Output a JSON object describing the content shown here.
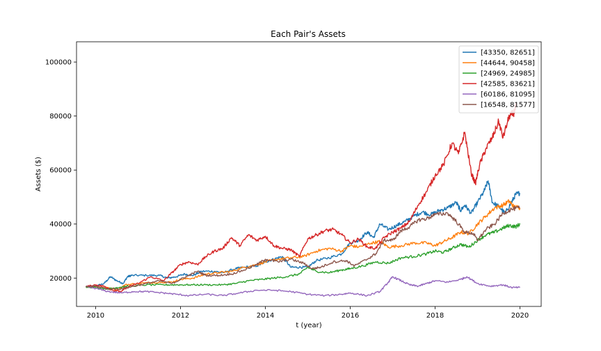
{
  "chart_data": {
    "type": "line",
    "title": "Each Pair's Assets",
    "xlabel": "t (year)",
    "ylabel": "Assets ($)",
    "xlim": [
      2009.55,
      2020.5
    ],
    "ylim": [
      9500,
      107500
    ],
    "x_ticks": [
      2010,
      2012,
      2014,
      2016,
      2018,
      2020
    ],
    "x_tick_labels": [
      "2010",
      "2012",
      "2014",
      "2016",
      "2018",
      "2020"
    ],
    "y_ticks": [
      20000,
      40000,
      60000,
      80000,
      100000
    ],
    "y_tick_labels": [
      "20000",
      "40000",
      "60000",
      "80000",
      "100000"
    ],
    "grid": false,
    "legend_position": "top-right",
    "series": [
      {
        "name": "[43350, 82651]",
        "color": "#1f77b4",
        "points": [
          [
            2009.77,
            16800
          ],
          [
            2010.0,
            17000
          ],
          [
            2010.2,
            18000
          ],
          [
            2010.35,
            20500
          ],
          [
            2010.5,
            19000
          ],
          [
            2010.65,
            18000
          ],
          [
            2010.75,
            20500
          ],
          [
            2010.85,
            21000
          ],
          [
            2011.2,
            21000
          ],
          [
            2011.5,
            21000
          ],
          [
            2011.7,
            20000
          ],
          [
            2011.9,
            20500
          ],
          [
            2012.1,
            21500
          ],
          [
            2012.3,
            21000
          ],
          [
            2012.5,
            22500
          ],
          [
            2012.8,
            22500
          ],
          [
            2013.0,
            22000
          ],
          [
            2013.3,
            23500
          ],
          [
            2013.5,
            24000
          ],
          [
            2013.8,
            24500
          ],
          [
            2014.0,
            26000
          ],
          [
            2014.2,
            27000
          ],
          [
            2014.4,
            28000
          ],
          [
            2014.6,
            24000
          ],
          [
            2014.8,
            24000
          ],
          [
            2015.0,
            24000
          ],
          [
            2015.2,
            26500
          ],
          [
            2015.5,
            27500
          ],
          [
            2015.8,
            29000
          ],
          [
            2016.0,
            33000
          ],
          [
            2016.2,
            34000
          ],
          [
            2016.4,
            37000
          ],
          [
            2016.55,
            35000
          ],
          [
            2016.7,
            40000
          ],
          [
            2016.9,
            38000
          ],
          [
            2017.1,
            39500
          ],
          [
            2017.3,
            41000
          ],
          [
            2017.5,
            43000
          ],
          [
            2017.7,
            44500
          ],
          [
            2017.9,
            43500
          ],
          [
            2018.1,
            45000
          ],
          [
            2018.3,
            46000
          ],
          [
            2018.5,
            48000
          ],
          [
            2018.6,
            45000
          ],
          [
            2018.7,
            47000
          ],
          [
            2018.85,
            44000
          ],
          [
            2019.0,
            48000
          ],
          [
            2019.15,
            52000
          ],
          [
            2019.25,
            56000
          ],
          [
            2019.35,
            48000
          ],
          [
            2019.5,
            46500
          ],
          [
            2019.65,
            44000
          ],
          [
            2019.8,
            48000
          ],
          [
            2019.9,
            51000
          ],
          [
            2020.0,
            51500
          ]
        ]
      },
      {
        "name": "[44644, 90458]",
        "color": "#ff7f0e",
        "points": [
          [
            2009.77,
            16800
          ],
          [
            2010.0,
            16800
          ],
          [
            2010.3,
            16500
          ],
          [
            2010.5,
            15500
          ],
          [
            2010.7,
            17500
          ],
          [
            2011.0,
            18000
          ],
          [
            2011.5,
            18500
          ],
          [
            2011.8,
            18500
          ],
          [
            2012.0,
            19500
          ],
          [
            2012.3,
            20000
          ],
          [
            2012.6,
            21500
          ],
          [
            2012.9,
            22000
          ],
          [
            2013.2,
            22500
          ],
          [
            2013.5,
            24000
          ],
          [
            2013.8,
            25000
          ],
          [
            2014.0,
            26000
          ],
          [
            2014.3,
            27000
          ],
          [
            2014.6,
            27500
          ],
          [
            2014.9,
            28000
          ],
          [
            2015.2,
            30000
          ],
          [
            2015.5,
            31000
          ],
          [
            2015.8,
            30000
          ],
          [
            2016.0,
            32000
          ],
          [
            2016.2,
            31500
          ],
          [
            2016.5,
            33000
          ],
          [
            2016.7,
            33500
          ],
          [
            2016.9,
            31500
          ],
          [
            2017.2,
            32000
          ],
          [
            2017.5,
            33000
          ],
          [
            2017.8,
            33000
          ],
          [
            2018.0,
            32000
          ],
          [
            2018.2,
            33500
          ],
          [
            2018.4,
            35000
          ],
          [
            2018.6,
            37000
          ],
          [
            2018.8,
            36500
          ],
          [
            2019.0,
            40000
          ],
          [
            2019.2,
            43000
          ],
          [
            2019.4,
            46000
          ],
          [
            2019.6,
            47000
          ],
          [
            2019.75,
            48500
          ],
          [
            2019.85,
            46500
          ],
          [
            2020.0,
            46000
          ]
        ]
      },
      {
        "name": "[24969, 24985]",
        "color": "#2ca02c",
        "points": [
          [
            2009.77,
            16800
          ],
          [
            2010.0,
            16500
          ],
          [
            2010.3,
            16000
          ],
          [
            2010.5,
            16500
          ],
          [
            2010.8,
            17000
          ],
          [
            2011.2,
            17500
          ],
          [
            2011.6,
            17500
          ],
          [
            2011.9,
            17500
          ],
          [
            2012.2,
            17500
          ],
          [
            2012.6,
            17500
          ],
          [
            2013.0,
            17500
          ],
          [
            2013.3,
            18000
          ],
          [
            2013.6,
            19000
          ],
          [
            2013.9,
            19500
          ],
          [
            2014.2,
            20000
          ],
          [
            2014.5,
            20500
          ],
          [
            2014.8,
            21500
          ],
          [
            2015.0,
            24000
          ],
          [
            2015.2,
            22500
          ],
          [
            2015.5,
            22000
          ],
          [
            2015.8,
            23000
          ],
          [
            2016.0,
            23500
          ],
          [
            2016.3,
            24500
          ],
          [
            2016.6,
            26000
          ],
          [
            2016.9,
            25500
          ],
          [
            2017.2,
            27500
          ],
          [
            2017.5,
            28000
          ],
          [
            2017.8,
            29000
          ],
          [
            2018.0,
            30000
          ],
          [
            2018.2,
            29500
          ],
          [
            2018.4,
            31000
          ],
          [
            2018.6,
            32500
          ],
          [
            2018.8,
            31500
          ],
          [
            2019.0,
            34000
          ],
          [
            2019.2,
            36000
          ],
          [
            2019.4,
            37000
          ],
          [
            2019.6,
            38500
          ],
          [
            2019.75,
            39500
          ],
          [
            2019.9,
            39000
          ],
          [
            2020.0,
            40000
          ]
        ]
      },
      {
        "name": "[42585, 83621]",
        "color": "#d62728",
        "points": [
          [
            2009.77,
            16800
          ],
          [
            2010.0,
            17500
          ],
          [
            2010.2,
            17000
          ],
          [
            2010.4,
            15500
          ],
          [
            2010.6,
            15000
          ],
          [
            2010.8,
            17000
          ],
          [
            2011.0,
            18000
          ],
          [
            2011.3,
            20500
          ],
          [
            2011.6,
            19000
          ],
          [
            2011.8,
            22000
          ],
          [
            2012.0,
            25000
          ],
          [
            2012.2,
            26000
          ],
          [
            2012.4,
            25000
          ],
          [
            2012.6,
            28000
          ],
          [
            2012.8,
            30000
          ],
          [
            2013.0,
            31000
          ],
          [
            2013.2,
            35000
          ],
          [
            2013.4,
            32000
          ],
          [
            2013.6,
            36000
          ],
          [
            2013.8,
            34000
          ],
          [
            2014.0,
            35500
          ],
          [
            2014.2,
            32000
          ],
          [
            2014.4,
            31000
          ],
          [
            2014.6,
            30500
          ],
          [
            2014.8,
            28000
          ],
          [
            2015.0,
            34500
          ],
          [
            2015.2,
            36000
          ],
          [
            2015.4,
            37500
          ],
          [
            2015.6,
            38000
          ],
          [
            2015.8,
            36000
          ],
          [
            2016.0,
            33000
          ],
          [
            2016.2,
            34500
          ],
          [
            2016.4,
            31500
          ],
          [
            2016.6,
            31000
          ],
          [
            2016.8,
            35000
          ],
          [
            2017.0,
            37000
          ],
          [
            2017.2,
            38500
          ],
          [
            2017.4,
            41000
          ],
          [
            2017.6,
            47000
          ],
          [
            2017.8,
            52000
          ],
          [
            2018.0,
            58000
          ],
          [
            2018.2,
            62000
          ],
          [
            2018.4,
            70000
          ],
          [
            2018.55,
            66000
          ],
          [
            2018.7,
            74000
          ],
          [
            2018.85,
            59000
          ],
          [
            2018.95,
            55000
          ],
          [
            2019.05,
            62000
          ],
          [
            2019.2,
            68000
          ],
          [
            2019.35,
            72000
          ],
          [
            2019.5,
            78000
          ],
          [
            2019.6,
            72000
          ],
          [
            2019.75,
            80000
          ],
          [
            2019.85,
            81000
          ],
          [
            2019.92,
            84000
          ]
        ]
      },
      {
        "name": "[60186, 81095]",
        "color": "#9467bd",
        "points": [
          [
            2009.77,
            16800
          ],
          [
            2010.0,
            16200
          ],
          [
            2010.3,
            15000
          ],
          [
            2010.6,
            14500
          ],
          [
            2010.9,
            15000
          ],
          [
            2011.2,
            15000
          ],
          [
            2011.6,
            14500
          ],
          [
            2011.9,
            14000
          ],
          [
            2012.2,
            13500
          ],
          [
            2012.6,
            14000
          ],
          [
            2013.0,
            13500
          ],
          [
            2013.4,
            14500
          ],
          [
            2013.8,
            15500
          ],
          [
            2014.2,
            15500
          ],
          [
            2014.6,
            15000
          ],
          [
            2015.0,
            14000
          ],
          [
            2015.4,
            13500
          ],
          [
            2015.8,
            14000
          ],
          [
            2016.0,
            14500
          ],
          [
            2016.4,
            13500
          ],
          [
            2016.7,
            15000
          ],
          [
            2016.9,
            18500
          ],
          [
            2017.0,
            20500
          ],
          [
            2017.2,
            19000
          ],
          [
            2017.4,
            17500
          ],
          [
            2017.6,
            17000
          ],
          [
            2017.8,
            18000
          ],
          [
            2018.0,
            19000
          ],
          [
            2018.3,
            18500
          ],
          [
            2018.6,
            19500
          ],
          [
            2018.75,
            20500
          ],
          [
            2019.0,
            18000
          ],
          [
            2019.3,
            17000
          ],
          [
            2019.6,
            17500
          ],
          [
            2019.8,
            16500
          ],
          [
            2020.0,
            16500
          ]
        ]
      },
      {
        "name": "[16548, 81577]",
        "color": "#8c564b",
        "points": [
          [
            2009.77,
            16800
          ],
          [
            2010.0,
            17000
          ],
          [
            2010.3,
            16000
          ],
          [
            2010.6,
            16000
          ],
          [
            2010.9,
            17000
          ],
          [
            2011.2,
            18000
          ],
          [
            2011.5,
            19000
          ],
          [
            2011.8,
            18000
          ],
          [
            2012.0,
            19500
          ],
          [
            2012.2,
            21000
          ],
          [
            2012.4,
            22500
          ],
          [
            2012.6,
            21000
          ],
          [
            2012.9,
            21000
          ],
          [
            2013.2,
            21500
          ],
          [
            2013.5,
            23000
          ],
          [
            2013.8,
            25000
          ],
          [
            2014.0,
            27000
          ],
          [
            2014.3,
            26000
          ],
          [
            2014.6,
            27000
          ],
          [
            2014.9,
            25500
          ],
          [
            2015.1,
            23500
          ],
          [
            2015.3,
            24000
          ],
          [
            2015.6,
            26000
          ],
          [
            2015.9,
            26500
          ],
          [
            2016.1,
            24500
          ],
          [
            2016.4,
            27000
          ],
          [
            2016.6,
            29000
          ],
          [
            2016.8,
            34000
          ],
          [
            2017.0,
            34000
          ],
          [
            2017.2,
            37500
          ],
          [
            2017.4,
            39000
          ],
          [
            2017.6,
            41500
          ],
          [
            2017.8,
            42000
          ],
          [
            2018.0,
            43500
          ],
          [
            2018.3,
            44000
          ],
          [
            2018.5,
            41000
          ],
          [
            2018.7,
            37000
          ],
          [
            2018.9,
            36500
          ],
          [
            2019.0,
            34000
          ],
          [
            2019.2,
            38000
          ],
          [
            2019.4,
            40000
          ],
          [
            2019.6,
            44000
          ],
          [
            2019.8,
            45500
          ],
          [
            2020.0,
            46000
          ]
        ]
      }
    ]
  }
}
